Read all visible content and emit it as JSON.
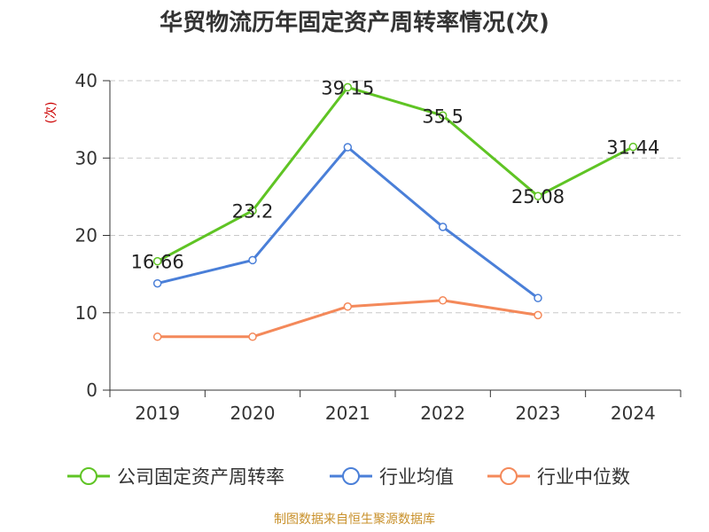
{
  "chart_data": {
    "type": "line",
    "title": "华贸物流历年固定资产周转率情况(次)",
    "ylabel": "(次)",
    "xlabel": "",
    "categories": [
      "2019",
      "2020",
      "2021",
      "2022",
      "2023",
      "2024"
    ],
    "ylim": [
      0,
      40
    ],
    "yticks": [
      0,
      10,
      20,
      30,
      40
    ],
    "grid": true,
    "legend_position": "bottom",
    "series": [
      {
        "name": "公司固定资产周转率",
        "color": "#5fc424",
        "values": [
          16.66,
          23.2,
          39.15,
          35.5,
          25.08,
          31.44
        ],
        "data_labels": [
          "16.66",
          "23.2",
          "39.15",
          "35.5",
          "25.08",
          "31.44"
        ]
      },
      {
        "name": "行业均值",
        "color": "#4a7fd8",
        "values": [
          13.8,
          16.8,
          31.4,
          21.1,
          11.9,
          null
        ]
      },
      {
        "name": "行业中位数",
        "color": "#f4895a",
        "values": [
          6.9,
          6.9,
          10.8,
          11.6,
          9.7,
          null
        ]
      }
    ],
    "source": "制图数据来自恒生聚源数据库"
  }
}
